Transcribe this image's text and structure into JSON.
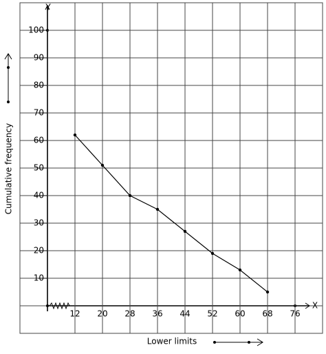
{
  "chart_data": {
    "type": "line",
    "x_label": "Lower limits",
    "y_label": "Cumulative frequency",
    "x_axis_symbol": "X",
    "y_axis_symbol": "Y",
    "series": [
      {
        "x": [
          12,
          20,
          28,
          36,
          44,
          52,
          60,
          68
        ],
        "values": [
          62,
          51,
          40,
          35,
          27,
          19,
          13,
          5
        ],
        "color": "#000000"
      }
    ],
    "xlim": [
      4,
      84
    ],
    "ylim": [
      0,
      110
    ],
    "xticks": [
      12,
      20,
      28,
      36,
      44,
      52,
      60,
      68,
      76
    ],
    "yticks": [
      10,
      20,
      30,
      40,
      50,
      60,
      70,
      80,
      90,
      100
    ],
    "grid": true
  }
}
